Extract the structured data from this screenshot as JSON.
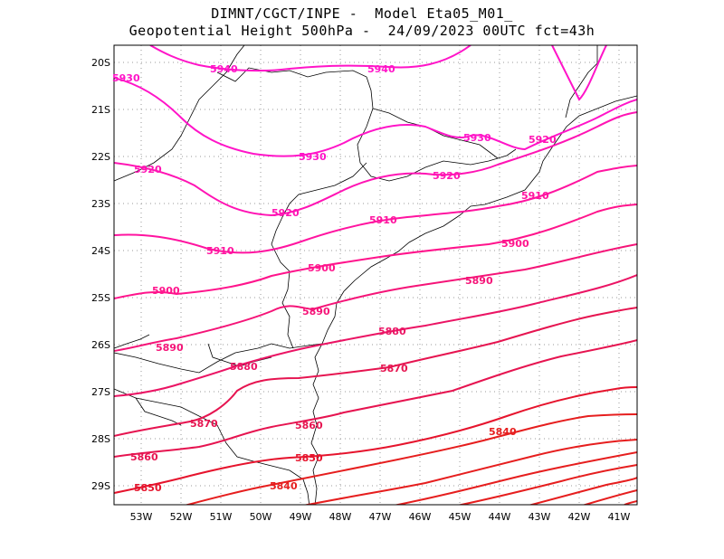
{
  "title": {
    "line1": "DIMNT/CGCT/INPE -  Model Eta05_M01_",
    "line2": "Geopotential Height 500hPa -  24/09/2023 00UTC fct=43h"
  },
  "axes": {
    "lat_labels": [
      "20S",
      "21S",
      "22S",
      "23S",
      "24S",
      "25S",
      "26S",
      "27S",
      "28S",
      "29S"
    ],
    "lon_labels": [
      "53W",
      "52W",
      "51W",
      "50W",
      "49W",
      "48W",
      "47W",
      "46W",
      "45W",
      "44W",
      "43W",
      "42W",
      "41W"
    ]
  },
  "contours": [
    {
      "value": "5940",
      "color": "#ff14c8"
    },
    {
      "value": "5930",
      "color": "#ff14c8"
    },
    {
      "value": "5920",
      "color": "#ff14b4"
    },
    {
      "value": "5910",
      "color": "#ff14a0"
    },
    {
      "value": "5900",
      "color": "#ff148c"
    },
    {
      "value": "5890",
      "color": "#f51478"
    },
    {
      "value": "5880",
      "color": "#eb1464"
    },
    {
      "value": "5870",
      "color": "#e61450"
    },
    {
      "value": "5860",
      "color": "#e6143c"
    },
    {
      "value": "5850",
      "color": "#e6142d"
    },
    {
      "value": "5840",
      "color": "#e61e1e"
    }
  ]
}
